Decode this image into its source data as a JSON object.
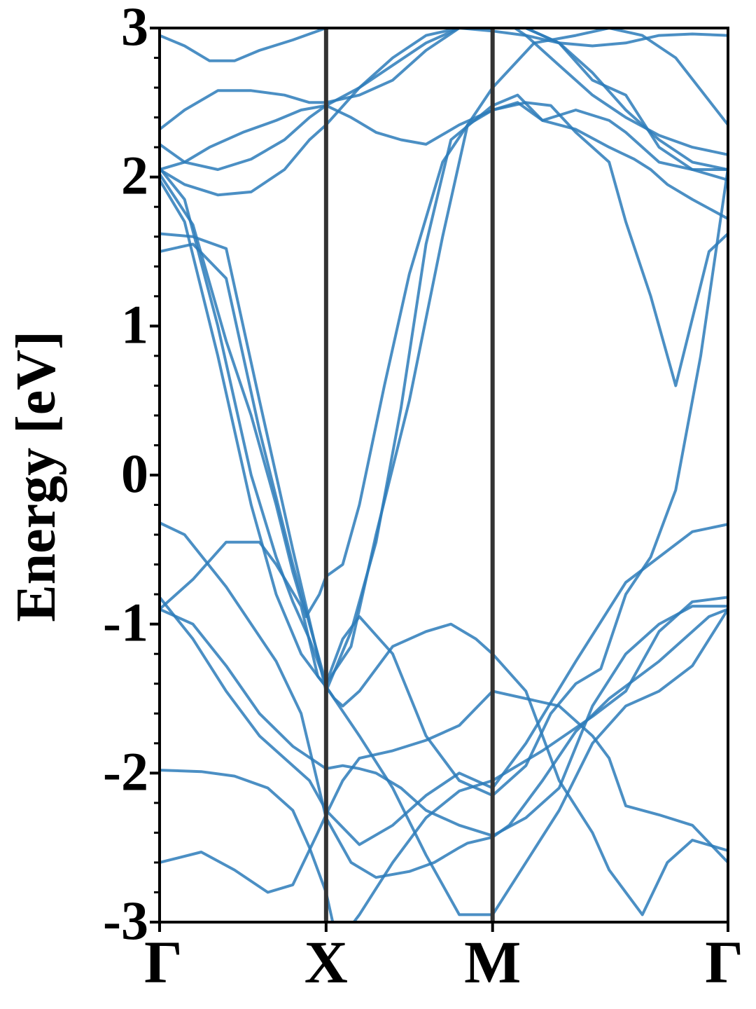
{
  "chart_data": {
    "type": "line",
    "title": "",
    "xlabel": "",
    "ylabel": "Energy [eV]",
    "ylim": [
      -3,
      3
    ],
    "yticks": [
      -3,
      -2,
      -1,
      0,
      1,
      2,
      3
    ],
    "ytick_labels": [
      "-3",
      "-2",
      "-1",
      "0",
      "1",
      "2",
      "3"
    ],
    "x_labels": [
      "Γ",
      "X",
      "M",
      "Γ"
    ],
    "x_positions": [
      0,
      1,
      2,
      3.414
    ],
    "grid": false,
    "legend": "none",
    "line_color": "#2b7bba",
    "divider_color": "#333333",
    "series": [
      {
        "x": [
          0,
          0.15,
          0.4,
          0.7,
          0.85,
          1.0,
          1.15,
          1.3,
          1.5,
          1.65,
          1.8,
          1.85,
          2.0,
          2.1,
          2.2,
          2.3,
          2.5,
          2.7,
          3.0,
          3.3,
          3.414
        ],
        "y": [
          -0.32,
          -0.4,
          -0.75,
          -1.25,
          -1.6,
          -2.3,
          -2.6,
          -2.7,
          -2.66,
          -2.6,
          -2.5,
          -2.47,
          -2.43,
          -2.35,
          -2.2,
          -2.05,
          -1.72,
          -1.5,
          -1.25,
          -0.95,
          -0.9
        ]
      },
      {
        "x": [
          0,
          0.2,
          0.4,
          0.6,
          0.8,
          0.9,
          1.0,
          1.2,
          1.4,
          1.6,
          1.8,
          2.0,
          2.2,
          2.5,
          2.8,
          3.0,
          3.2,
          3.414
        ],
        "y": [
          -0.82,
          -1.1,
          -1.45,
          -1.75,
          -1.95,
          -2.05,
          -2.25,
          -2.48,
          -2.35,
          -2.15,
          -2.0,
          -2.1,
          -1.8,
          -1.25,
          -0.72,
          -0.55,
          -0.38,
          -0.33
        ]
      },
      {
        "x": [
          0,
          0.2,
          0.4,
          0.6,
          0.8,
          1.0,
          1.1,
          1.2,
          1.3,
          1.45,
          1.6,
          1.8,
          2.0,
          2.2,
          2.4,
          2.6,
          2.8,
          3.0,
          3.2,
          3.414
        ],
        "y": [
          -0.9,
          -1.0,
          -1.28,
          -1.6,
          -1.82,
          -1.97,
          -1.95,
          -1.97,
          -2.0,
          -2.1,
          -2.25,
          -2.35,
          -2.42,
          -2.3,
          -2.1,
          -1.55,
          -1.2,
          -1.0,
          -0.88,
          -0.88
        ]
      },
      {
        "x": [
          0,
          0.25,
          0.45,
          0.65,
          0.8,
          0.9,
          1.0,
          1.05,
          1.1,
          1.2,
          1.4,
          1.6,
          1.8,
          2.0,
          2.3,
          2.6,
          2.8,
          3.0,
          3.2,
          3.414
        ],
        "y": [
          -1.98,
          -1.99,
          -2.02,
          -2.1,
          -2.25,
          -2.5,
          -2.8,
          -3.05,
          -3.1,
          -2.95,
          -2.6,
          -2.3,
          -2.12,
          -2.05,
          -1.85,
          -1.62,
          -1.45,
          -1.05,
          -0.85,
          -0.82
        ]
      },
      {
        "x": [
          0,
          0.25,
          0.45,
          0.65,
          0.8,
          0.95,
          1.0,
          1.1,
          1.2,
          1.4,
          1.6,
          1.8,
          2.0,
          2.2,
          2.4,
          2.6,
          2.7,
          2.8,
          3.0,
          3.2,
          3.414
        ],
        "y": [
          -2.6,
          -2.53,
          -2.65,
          -2.8,
          -2.75,
          -2.4,
          -2.28,
          -2.05,
          -1.9,
          -1.85,
          -1.78,
          -1.68,
          -1.45,
          -1.5,
          -1.55,
          -1.75,
          -1.9,
          -2.22,
          -2.28,
          -2.35,
          -2.6
        ]
      },
      {
        "x": [
          0,
          0.15,
          0.35,
          0.55,
          0.7,
          0.8,
          0.9,
          0.95,
          1.0,
          1.1,
          1.2,
          1.4,
          1.6,
          1.8,
          2.0,
          2.2,
          2.35,
          2.5,
          2.65,
          2.8,
          2.95,
          3.1,
          3.25,
          3.414
        ],
        "y": [
          2.06,
          1.85,
          1.0,
          0.0,
          -0.55,
          -0.85,
          -1.1,
          -1.25,
          -1.4,
          -1.1,
          -0.95,
          -1.2,
          -1.75,
          -2.05,
          -2.15,
          -1.95,
          -1.6,
          -1.4,
          -1.3,
          -0.8,
          -0.55,
          -0.1,
          0.8,
          2.06
        ]
      },
      {
        "x": [
          0,
          0.15,
          0.35,
          0.55,
          0.7,
          0.85,
          0.95,
          1.0,
          1.05,
          1.1,
          1.2,
          1.4,
          1.6,
          1.75,
          1.9,
          2.0,
          2.2,
          2.4,
          2.6,
          2.7,
          2.9,
          3.05,
          3.2,
          3.414
        ],
        "y": [
          1.98,
          1.7,
          0.8,
          -0.2,
          -0.8,
          -1.2,
          -1.35,
          -1.42,
          -1.5,
          -1.55,
          -1.45,
          -1.15,
          -1.05,
          -1.0,
          -1.1,
          -1.2,
          -1.45,
          -2.05,
          -2.4,
          -2.65,
          -2.95,
          -2.6,
          -2.45,
          -2.52
        ]
      },
      {
        "x": [
          0,
          0.2,
          0.4,
          0.55,
          0.7,
          0.8,
          0.88,
          0.96,
          1.0,
          1.1,
          1.2,
          1.35,
          1.5,
          1.7,
          2.0,
          2.25,
          2.5,
          2.7,
          2.9,
          3.1,
          3.414
        ],
        "y": [
          2.02,
          1.68,
          0.9,
          0.4,
          -0.2,
          -0.65,
          -0.95,
          -0.8,
          -0.68,
          -0.6,
          -0.2,
          0.6,
          1.35,
          2.1,
          2.6,
          2.9,
          2.95,
          3.0,
          2.95,
          2.8,
          2.35
        ]
      },
      {
        "x": [
          0,
          0.2,
          0.4,
          0.6,
          0.8,
          1.0,
          1.15,
          1.3,
          1.45,
          1.6,
          1.75,
          2.0,
          2.15,
          2.3,
          2.5,
          2.7,
          2.8,
          2.9,
          3.0,
          3.2,
          3.414
        ],
        "y": [
          1.62,
          1.6,
          1.52,
          0.5,
          -0.5,
          -1.45,
          -1.05,
          -0.45,
          0.45,
          1.55,
          2.25,
          2.48,
          2.55,
          2.38,
          2.45,
          2.38,
          2.3,
          2.2,
          2.1,
          2.05,
          2.05
        ]
      },
      {
        "x": [
          0,
          0.2,
          0.4,
          0.6,
          0.8,
          1.0,
          1.15,
          1.3,
          1.5,
          1.7,
          1.85,
          2.0,
          2.15,
          2.3,
          2.5,
          2.7,
          2.85,
          2.95,
          3.05,
          3.2,
          3.414
        ],
        "y": [
          1.5,
          1.55,
          1.32,
          0.3,
          -0.6,
          -1.4,
          -1.15,
          -0.4,
          0.5,
          1.6,
          2.35,
          2.45,
          2.5,
          2.38,
          2.32,
          2.2,
          2.12,
          2.05,
          1.95,
          1.85,
          1.72
        ]
      },
      {
        "x": [
          0,
          0.15,
          0.3,
          0.5,
          0.7,
          0.85,
          1.0,
          1.15,
          1.3,
          1.45,
          1.6,
          1.8,
          2.0,
          2.2,
          2.35,
          2.5,
          2.7,
          2.8,
          2.95,
          3.1,
          3.3,
          3.414
        ],
        "y": [
          2.05,
          2.1,
          2.2,
          2.3,
          2.38,
          2.45,
          2.48,
          2.4,
          2.3,
          2.25,
          2.22,
          2.35,
          2.45,
          2.5,
          2.48,
          2.3,
          2.1,
          1.7,
          1.2,
          0.6,
          1.5,
          1.62
        ]
      },
      {
        "x": [
          0,
          0.15,
          0.35,
          0.55,
          0.75,
          0.9,
          1.0,
          1.2,
          1.4,
          1.6,
          1.8,
          2.0,
          2.2,
          2.4,
          2.6,
          2.8,
          3.0,
          3.2,
          3.414
        ],
        "y": [
          2.22,
          2.1,
          2.05,
          2.12,
          2.25,
          2.4,
          2.48,
          2.6,
          2.75,
          2.9,
          3.0,
          3.05,
          3.0,
          2.9,
          2.65,
          2.55,
          2.2,
          2.05,
          1.98
        ]
      },
      {
        "x": [
          0,
          0.15,
          0.35,
          0.55,
          0.75,
          0.9,
          1.0,
          1.2,
          1.4,
          1.6,
          1.8,
          2.0,
          2.2,
          2.4,
          2.6,
          2.8,
          3.0,
          3.2,
          3.414
        ],
        "y": [
          2.32,
          2.45,
          2.58,
          2.58,
          2.55,
          2.5,
          2.5,
          2.55,
          2.65,
          2.85,
          3.0,
          3.1,
          2.95,
          2.75,
          2.55,
          2.4,
          2.28,
          2.2,
          2.15
        ]
      },
      {
        "x": [
          0,
          0.15,
          0.35,
          0.55,
          0.75,
          0.9,
          1.0,
          1.2,
          1.4,
          1.6,
          1.8,
          2.0,
          2.2,
          2.4,
          2.6,
          2.8,
          3.0,
          3.2,
          3.414
        ],
        "y": [
          2.05,
          1.95,
          1.88,
          1.9,
          2.05,
          2.25,
          2.35,
          2.6,
          2.8,
          2.95,
          3.0,
          3.05,
          3.0,
          2.9,
          2.7,
          2.45,
          2.25,
          2.1,
          2.05
        ]
      },
      {
        "x": [
          0,
          0.15,
          0.3,
          0.45,
          0.6,
          0.8,
          1.0,
          1.2,
          1.4,
          1.6,
          1.8,
          2.0,
          2.2,
          2.4,
          2.6,
          2.8,
          3.0,
          3.2,
          3.414
        ],
        "y": [
          2.95,
          2.88,
          2.78,
          2.78,
          2.85,
          2.92,
          3.0,
          3.05,
          3.05,
          3.02,
          3.0,
          2.98,
          2.95,
          2.9,
          2.88,
          2.9,
          2.95,
          2.96,
          2.95
        ]
      },
      {
        "x": [
          0,
          0.2,
          0.4,
          0.6,
          0.7,
          0.85,
          0.95,
          1.0,
          1.2,
          1.4,
          1.6,
          1.8,
          2.0,
          2.2,
          2.4,
          2.6,
          2.8,
          3.0,
          3.2,
          3.414
        ],
        "y": [
          -0.9,
          -0.7,
          -0.45,
          -0.45,
          -0.6,
          -0.88,
          -1.35,
          -1.42,
          -1.75,
          -2.1,
          -2.55,
          -2.95,
          -2.95,
          -2.6,
          -2.25,
          -1.8,
          -1.55,
          -1.45,
          -1.28,
          -0.9
        ]
      }
    ]
  }
}
